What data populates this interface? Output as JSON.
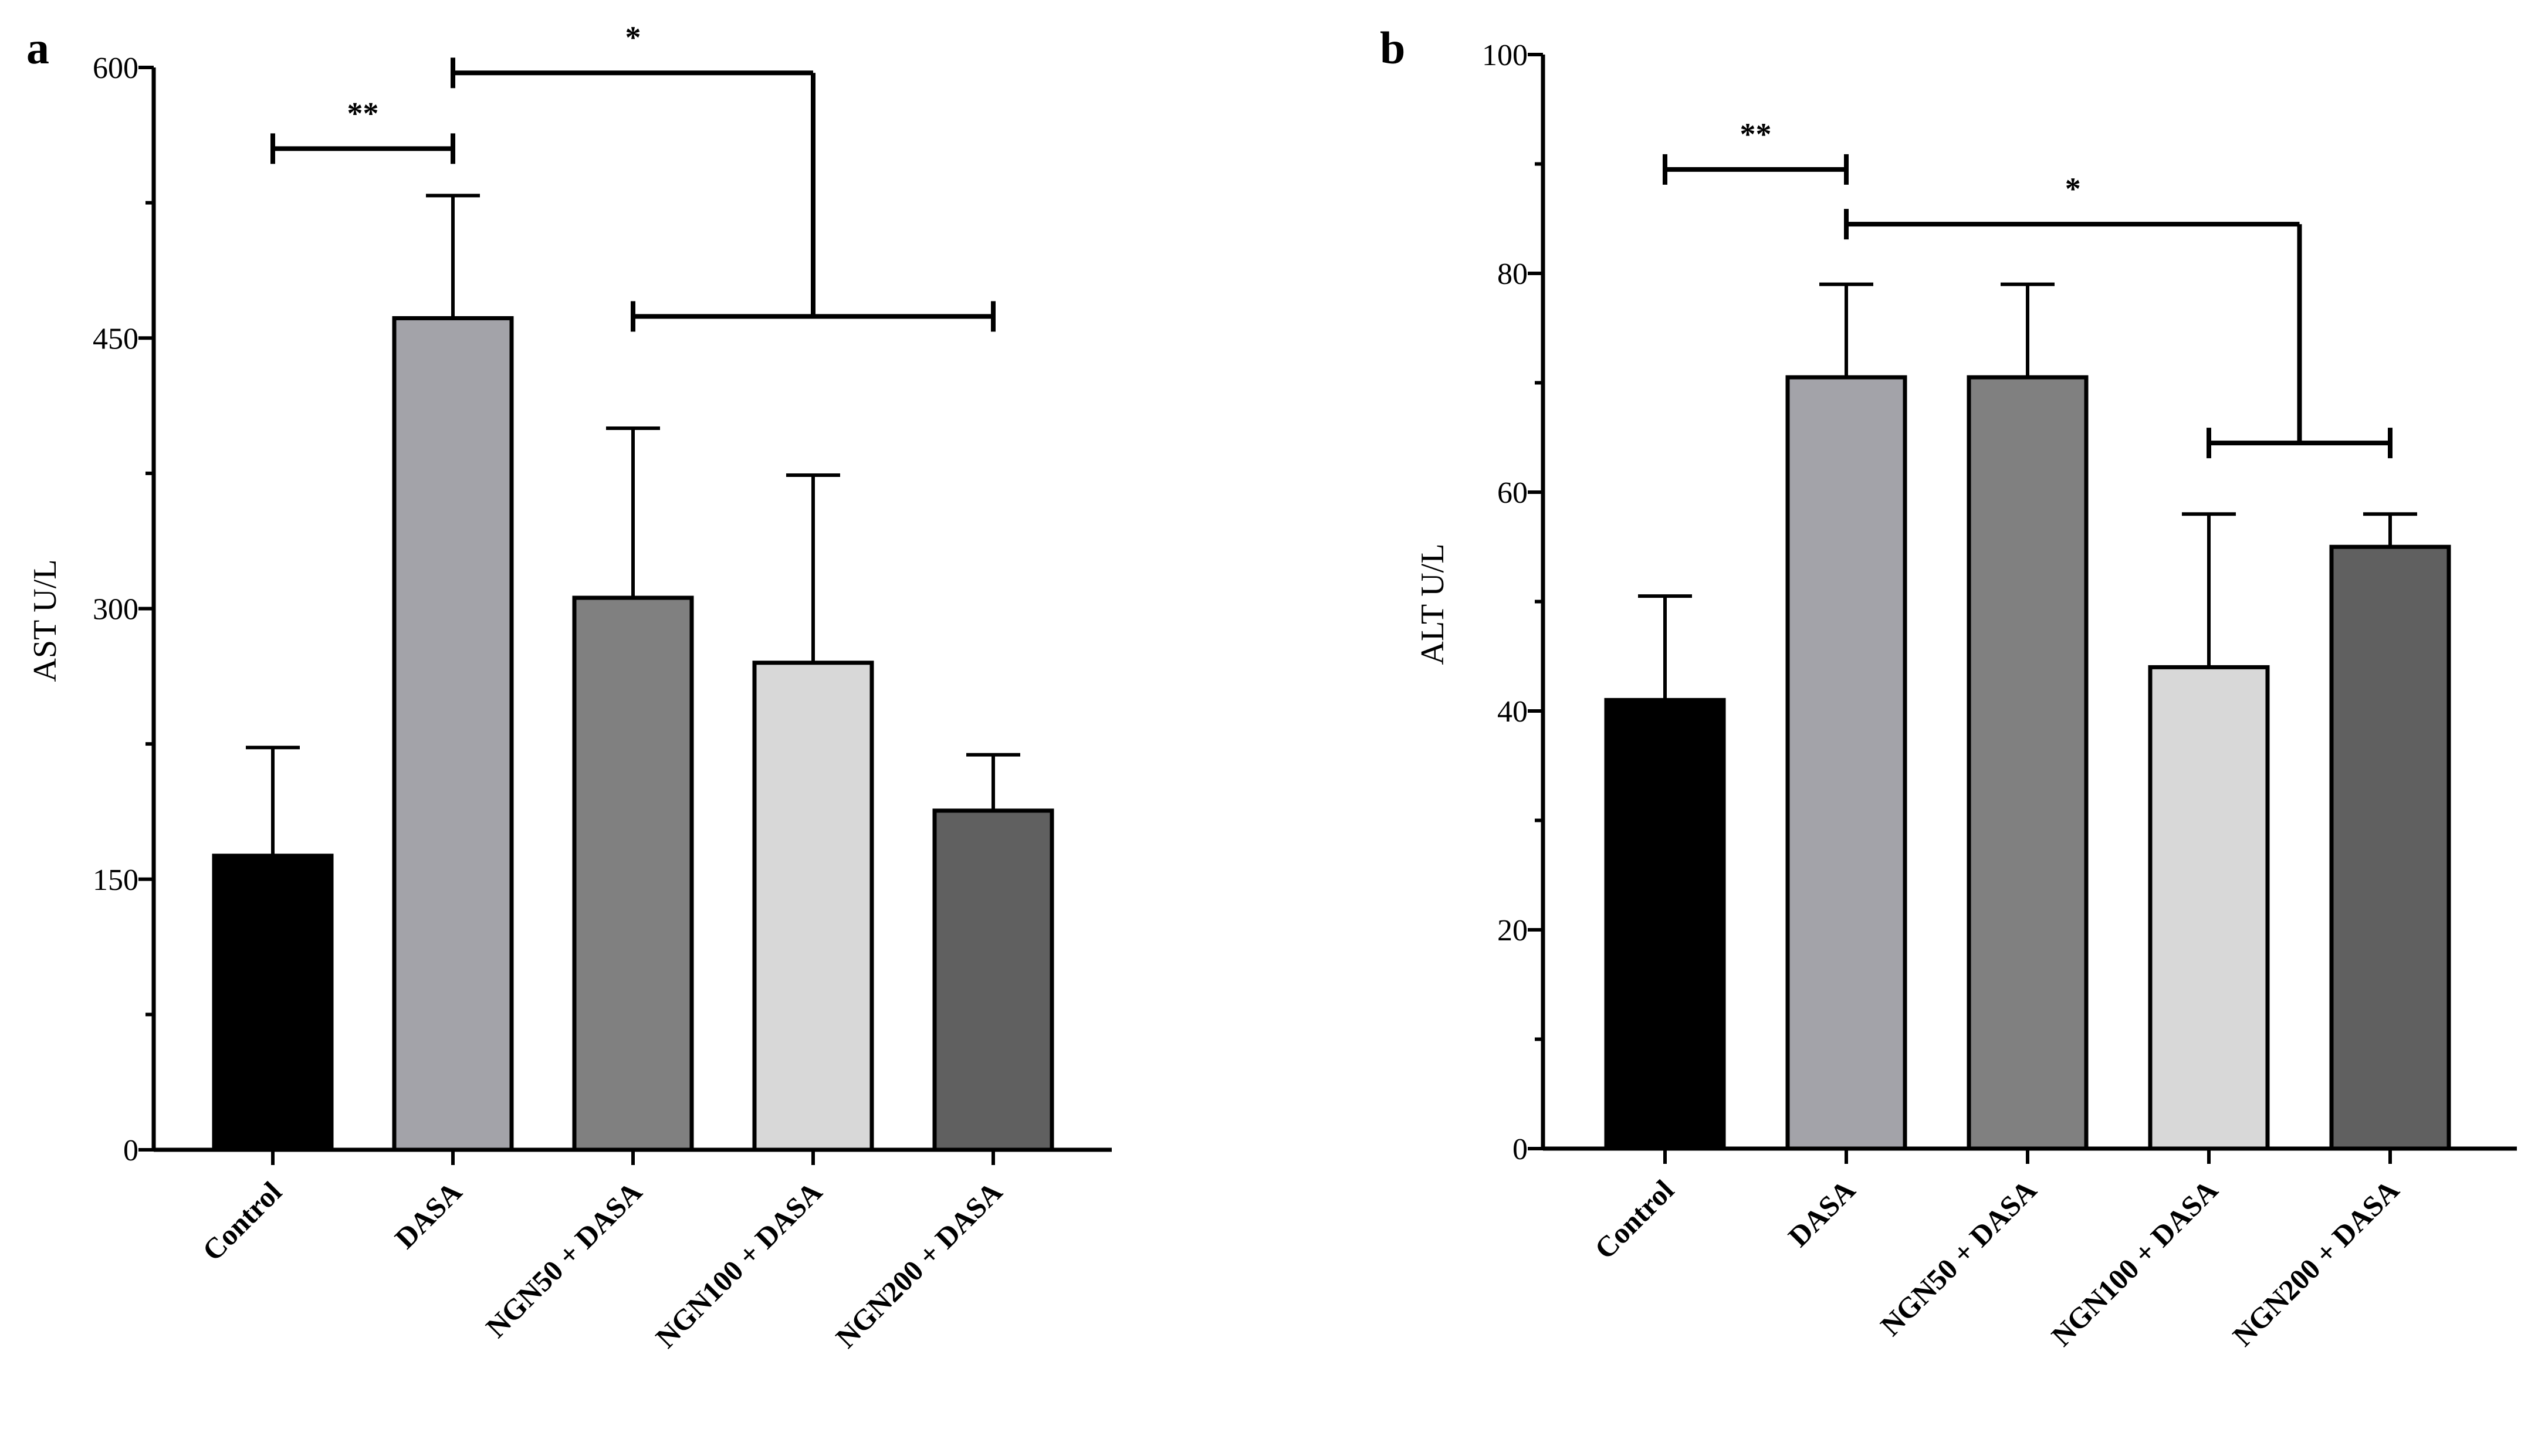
{
  "chart_data": [
    {
      "panel": "a",
      "type": "bar",
      "ylabel": "AST U/L",
      "xlabel": "",
      "categories": [
        "Control",
        "DASA",
        "NGN50 + DASA",
        "NGN100 + DASA",
        "NGN200 + DASA"
      ],
      "values": [
        163,
        461,
        306,
        270,
        188
      ],
      "errors": [
        60,
        68,
        94,
        104,
        31
      ],
      "colors": [
        "#000000",
        "#a3a3a9",
        "#808080",
        "#d8d8d8",
        "#606060"
      ],
      "ylim": [
        0,
        600
      ],
      "yticks": [
        0,
        150,
        300,
        450,
        600
      ],
      "minor_ticks": [
        75,
        225,
        375,
        525
      ],
      "significance": [
        {
          "label": "**",
          "type": "bracket",
          "from": 0,
          "to": 1,
          "level": 555
        },
        {
          "label": "*",
          "type": "group",
          "left": 1,
          "group": [
            2,
            4
          ],
          "top": 597,
          "group_level": 462
        }
      ]
    },
    {
      "panel": "b",
      "type": "bar",
      "ylabel": "ALT U/L",
      "xlabel": "",
      "categories": [
        "Control",
        "DASA",
        "NGN50 + DASA",
        "NGN100 + DASA",
        "NGN200 + DASA"
      ],
      "values": [
        41,
        70.5,
        70.5,
        44,
        55
      ],
      "errors": [
        9.5,
        8.5,
        8.5,
        14,
        3
      ],
      "colors": [
        "#000000",
        "#a3a3a9",
        "#808080",
        "#d8d8d8",
        "#606060"
      ],
      "ylim": [
        0,
        100
      ],
      "yticks": [
        0,
        20,
        40,
        60,
        80,
        100
      ],
      "minor_ticks": [
        10,
        30,
        50,
        70,
        90
      ],
      "significance": [
        {
          "label": "**",
          "type": "bracket",
          "from": 0,
          "to": 1,
          "level": 89.5
        },
        {
          "label": "*",
          "type": "group",
          "left": 1,
          "group": [
            3,
            4
          ],
          "top": 84.5,
          "group_level": 64.5
        }
      ]
    }
  ]
}
